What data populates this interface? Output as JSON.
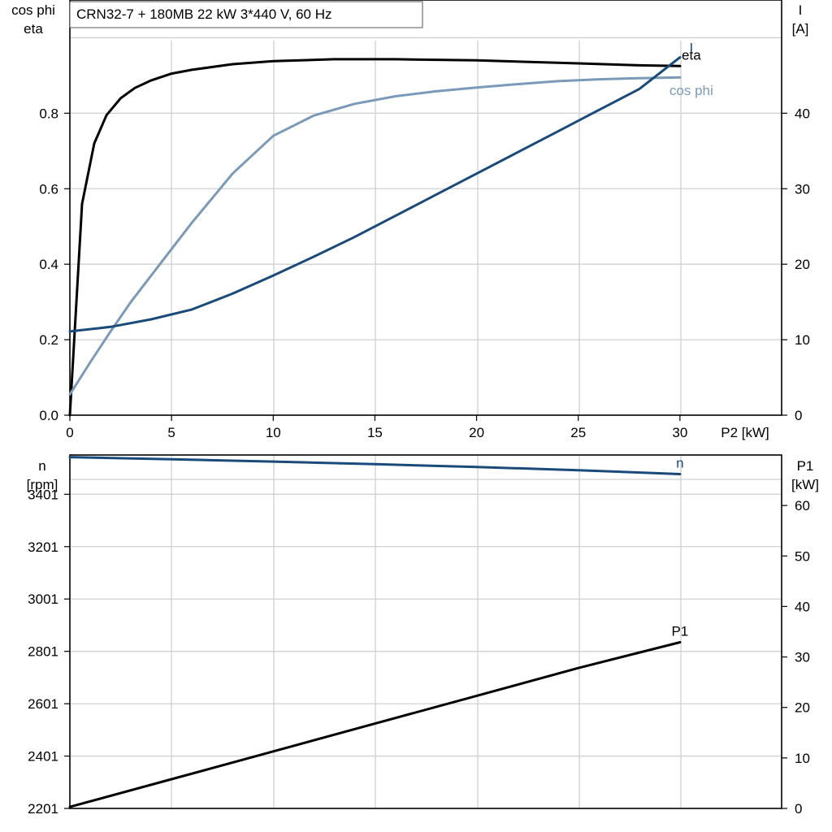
{
  "chart_data": [
    {
      "type": "line",
      "title": "CRN32-7 + 180MB   22 kW   3*440 V, 60 Hz",
      "xlabel": "P2 [kW]",
      "xlim": [
        0,
        35
      ],
      "xticks": [
        0,
        5,
        10,
        15,
        20,
        25,
        30
      ],
      "ylabel_left": [
        "cos phi",
        "eta"
      ],
      "ylim_left": [
        0,
        1.1
      ],
      "yticks_left": [
        0.0,
        0.2,
        0.4,
        0.6,
        0.8
      ],
      "ytick_labels_left": [
        "0.0",
        "0.2",
        "0.4",
        "0.6",
        "0.8"
      ],
      "ylabel_right": [
        "I",
        "[A]"
      ],
      "ylim_right": [
        0,
        55
      ],
      "yticks_right": [
        0,
        10,
        20,
        30,
        40
      ],
      "grid": true,
      "series": [
        {
          "name": "eta",
          "axis": "left",
          "color": "#000000",
          "x": [
            0,
            0.6,
            1.2,
            1.8,
            2.5,
            3.2,
            4,
            5,
            6,
            8,
            10,
            13,
            16,
            20,
            25,
            28,
            30
          ],
          "y": [
            0.0,
            0.56,
            0.72,
            0.795,
            0.84,
            0.867,
            0.887,
            0.905,
            0.915,
            0.93,
            0.938,
            0.943,
            0.943,
            0.94,
            0.932,
            0.927,
            0.925
          ]
        },
        {
          "name": "cos phi",
          "axis": "left",
          "color": "#7a9ab8",
          "x": [
            0,
            1,
            2,
            3,
            4,
            5,
            6,
            7,
            8,
            10,
            12,
            14,
            16,
            18,
            20,
            22,
            24,
            26,
            28,
            30
          ],
          "y": [
            0.055,
            0.14,
            0.222,
            0.3,
            0.37,
            0.44,
            0.51,
            0.575,
            0.64,
            0.74,
            0.794,
            0.825,
            0.845,
            0.858,
            0.868,
            0.877,
            0.885,
            0.89,
            0.893,
            0.895
          ]
        },
        {
          "name": "I",
          "axis": "right",
          "color": "#1a4a7a",
          "x": [
            0,
            2,
            4,
            6,
            8,
            10,
            12,
            14,
            16,
            18,
            20,
            22,
            24,
            26,
            28,
            30
          ],
          "y": [
            11.1,
            11.7,
            12.7,
            14.0,
            16.1,
            18.5,
            21.0,
            23.6,
            26.4,
            29.2,
            32.0,
            34.8,
            37.6,
            40.4,
            43.2,
            47.4
          ]
        }
      ]
    },
    {
      "type": "line",
      "xlim": [
        0,
        35
      ],
      "ylabel_left": [
        "n",
        "[rpm]"
      ],
      "ylim_left": [
        2201,
        3551
      ],
      "yticks_left": [
        2201,
        2401,
        2601,
        2801,
        3001,
        3201,
        3401
      ],
      "ylabel_right": [
        "P1",
        "[kW]"
      ],
      "ylim_right": [
        0,
        70
      ],
      "yticks_right": [
        0,
        10,
        20,
        30,
        40,
        50,
        60
      ],
      "grid": true,
      "series": [
        {
          "name": "n",
          "axis": "left",
          "color": "#1a4a7a",
          "x": [
            0,
            5,
            10,
            15,
            20,
            25,
            30
          ],
          "y": [
            3543,
            3535,
            3526,
            3516,
            3505,
            3493,
            3478
          ]
        },
        {
          "name": "P1",
          "axis": "right",
          "color": "#000000",
          "x": [
            0,
            5,
            10,
            15,
            20,
            25,
            30
          ],
          "y": [
            0.3,
            5.8,
            11.3,
            16.8,
            22.3,
            27.8,
            32.9
          ]
        }
      ]
    }
  ]
}
